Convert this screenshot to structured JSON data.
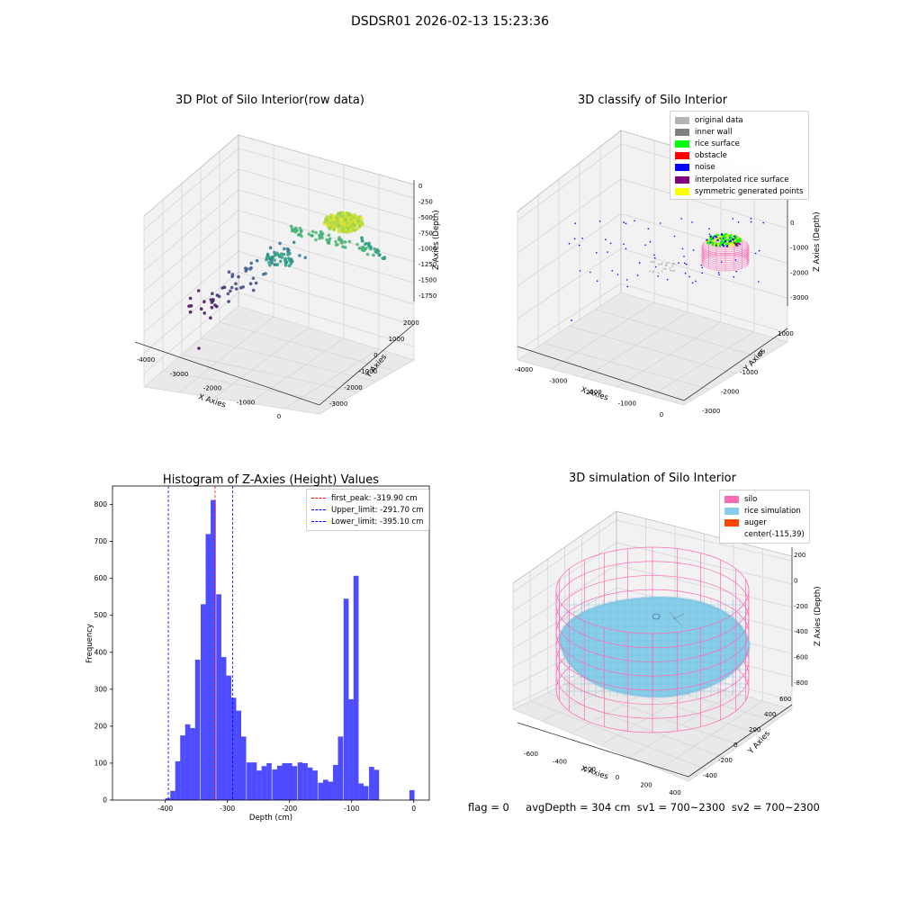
{
  "figure_title": "DSDSR01 2026-02-13 15:23:36",
  "panels": {
    "raw": {
      "title": "3D Plot of Silo Interior(row data)",
      "xlabel": "X Axies",
      "ylabel": "Y Axies",
      "zlabel": "Z Axies (Depth)",
      "xticks": [
        "-4000",
        "-3000",
        "-2000",
        "-1000",
        "0"
      ],
      "yticks": [
        "2000",
        "1000",
        "0",
        "-1000",
        "-2000",
        "-3000"
      ],
      "zticks": [
        "0",
        "-250",
        "-500",
        "-750",
        "-1000",
        "-1250",
        "-1500",
        "-1750"
      ]
    },
    "classify": {
      "title": "3D classify of Silo Interior",
      "xlabel": "X Axies",
      "ylabel": "Y Axies",
      "zlabel": "Z Axies (Depth)",
      "xticks": [
        "-4000",
        "-3000",
        "-2000",
        "-1000",
        "0"
      ],
      "yticks": [
        "1000",
        "0",
        "-1000",
        "-2000",
        "-3000"
      ],
      "zticks": [
        "1000",
        "0",
        "-1000",
        "-2000",
        "-3000"
      ],
      "legend": [
        {
          "label": "original data",
          "color": "#b4b4b4"
        },
        {
          "label": "inner wall",
          "color": "#808080"
        },
        {
          "label": "rice surface",
          "color": "#00ff00"
        },
        {
          "label": "obstacle",
          "color": "#ff0000"
        },
        {
          "label": "noise",
          "color": "#0000ff"
        },
        {
          "label": "interpolated rice surface",
          "color": "#800080"
        },
        {
          "label": "symmetric generated points",
          "color": "#ffff00"
        }
      ]
    },
    "simulation": {
      "title": "3D simulation of Silo Interior",
      "xlabel": "X Axies",
      "ylabel": "Y Axies",
      "zlabel": "Z Axies (Depth)",
      "xticks": [
        "-600",
        "-400",
        "-200",
        "0",
        "200",
        "400"
      ],
      "yticks": [
        "600",
        "400",
        "200",
        "0",
        "-200",
        "-400"
      ],
      "zticks": [
        "200",
        "0",
        "-200",
        "-400",
        "-600",
        "-800"
      ],
      "legend": [
        {
          "label": "silo",
          "color": "#ff69b4",
          "kind": "patch"
        },
        {
          "label": "rice simulation",
          "color": "#87ceeb",
          "kind": "patch"
        },
        {
          "label": "auger",
          "color": "#ff4500",
          "kind": "patch"
        },
        {
          "label": "center(-115,39)",
          "color": "#ffffff",
          "kind": "none"
        }
      ]
    }
  },
  "footer": {
    "flag": "flag = 0",
    "avg_depth": "avgDepth = 304 cm",
    "sv1": "sv1 = 700~2300",
    "sv2": "sv2 = 700~2300"
  },
  "chart_data": [
    {
      "type": "bar",
      "title": "Histogram of Z-Axies (Height) Values",
      "xlabel": "Depth (cm)",
      "ylabel": "Frequency",
      "xlim": [
        -485,
        25
      ],
      "ylim": [
        0,
        850
      ],
      "xticks": [
        -400,
        -300,
        -200,
        -100,
        0
      ],
      "yticks": [
        0,
        100,
        200,
        300,
        400,
        500,
        600,
        700,
        800
      ],
      "bar_color": "#4d4dff",
      "bin_width": 8.2,
      "bins": [
        {
          "x": -400,
          "value": 5
        },
        {
          "x": -392,
          "value": 25
        },
        {
          "x": -384,
          "value": 105
        },
        {
          "x": -376,
          "value": 175
        },
        {
          "x": -368,
          "value": 205
        },
        {
          "x": -360,
          "value": 195
        },
        {
          "x": -352,
          "value": 380
        },
        {
          "x": -343,
          "value": 530
        },
        {
          "x": -335,
          "value": 720
        },
        {
          "x": -327,
          "value": 812
        },
        {
          "x": -318,
          "value": 557
        },
        {
          "x": -310,
          "value": 387
        },
        {
          "x": -302,
          "value": 337
        },
        {
          "x": -294,
          "value": 277
        },
        {
          "x": -286,
          "value": 242
        },
        {
          "x": -278,
          "value": 172
        },
        {
          "x": -269,
          "value": 102
        },
        {
          "x": -261,
          "value": 102
        },
        {
          "x": -253,
          "value": 80
        },
        {
          "x": -245,
          "value": 92
        },
        {
          "x": -237,
          "value": 100
        },
        {
          "x": -228,
          "value": 83
        },
        {
          "x": -220,
          "value": 93
        },
        {
          "x": -212,
          "value": 100
        },
        {
          "x": -204,
          "value": 100
        },
        {
          "x": -196,
          "value": 92
        },
        {
          "x": -187,
          "value": 102
        },
        {
          "x": -179,
          "value": 100
        },
        {
          "x": -171,
          "value": 88
        },
        {
          "x": -163,
          "value": 80
        },
        {
          "x": -154,
          "value": 47
        },
        {
          "x": -146,
          "value": 55
        },
        {
          "x": -138,
          "value": 50
        },
        {
          "x": -130,
          "value": 95
        },
        {
          "x": -122,
          "value": 172
        },
        {
          "x": -113,
          "value": 545
        },
        {
          "x": -105,
          "value": 273
        },
        {
          "x": -97,
          "value": 607
        },
        {
          "x": -89,
          "value": 45
        },
        {
          "x": -81,
          "value": 38
        },
        {
          "x": -72,
          "value": 90
        },
        {
          "x": -64,
          "value": 82
        },
        {
          "x": -7,
          "value": 27
        }
      ],
      "reference_lines": [
        {
          "label": "first_peak: -319.90 cm",
          "x": -319.9,
          "color": "#ff0000"
        },
        {
          "label": "Upper_limit: -291.70 cm",
          "x": -291.7,
          "color": "#0000ff"
        },
        {
          "label": "Lower_limit: -395.10 cm",
          "x": -395.1,
          "color": "#0000ff"
        }
      ]
    }
  ]
}
